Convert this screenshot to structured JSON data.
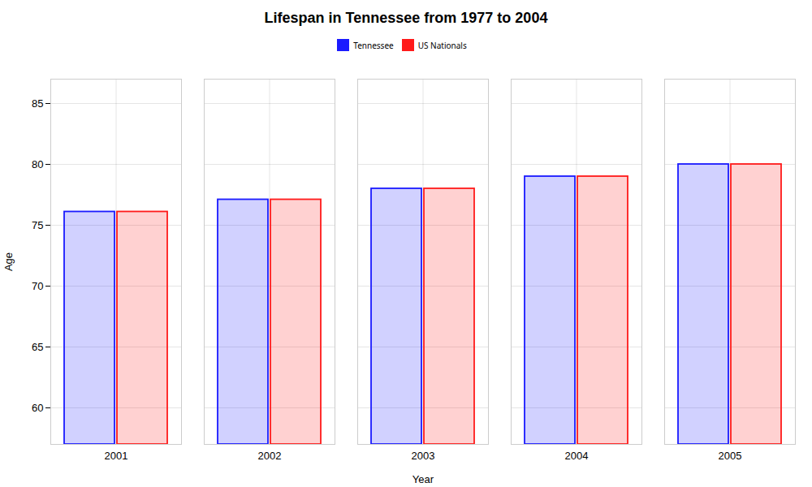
{
  "chart_data": {
    "type": "bar",
    "title": "Lifespan in Tennessee from 1977 to 2004",
    "xlabel": "Year",
    "ylabel": "Age",
    "categories": [
      "2001",
      "2002",
      "2003",
      "2004",
      "2005"
    ],
    "series": [
      {
        "name": "Tennessee",
        "color": "#1a1aff",
        "values": [
          76.1,
          77.1,
          78.0,
          79.0,
          80.0
        ]
      },
      {
        "name": "US Nationals",
        "color": "#ff1a1a",
        "values": [
          76.1,
          77.1,
          78.0,
          79.0,
          80.0
        ]
      }
    ],
    "ylim": [
      57,
      87
    ],
    "yticks": [
      60,
      65,
      70,
      75,
      80,
      85
    ],
    "grid": true,
    "legend": "top"
  }
}
